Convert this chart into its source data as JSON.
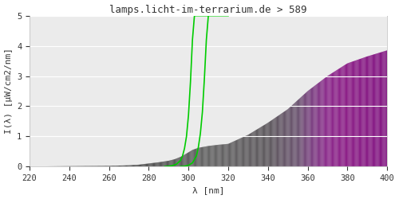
{
  "title": "lamps.licht-im-terrarium.de > 589",
  "xlabel": "λ [nm]",
  "ylabel": "I(λ) [µW/cm2/nm]",
  "xlim": [
    220,
    400
  ],
  "ylim": [
    0,
    5.0
  ],
  "xticks": [
    220,
    240,
    260,
    280,
    300,
    320,
    340,
    360,
    380,
    400
  ],
  "yticks": [
    0.0,
    1.0,
    2.0,
    3.0,
    4.0,
    5.0
  ],
  "background_color": "#ebebeb",
  "grid_color": "#ffffff",
  "solar_spectrum_x": [
    220,
    230,
    240,
    250,
    260,
    270,
    275,
    280,
    285,
    290,
    293,
    296,
    299,
    302,
    305,
    310,
    315,
    320,
    330,
    340,
    350,
    360,
    370,
    380,
    390,
    400
  ],
  "solar_spectrum_y": [
    0.0,
    0.005,
    0.01,
    0.015,
    0.02,
    0.04,
    0.06,
    0.1,
    0.14,
    0.19,
    0.24,
    0.32,
    0.43,
    0.55,
    0.62,
    0.68,
    0.72,
    0.75,
    1.05,
    1.45,
    1.9,
    2.5,
    3.0,
    3.42,
    3.65,
    3.85
  ],
  "spectrum_colors": {
    "220": "#111111",
    "250": "#222222",
    "280": "#333333",
    "300": "#555555",
    "320": "#4a4a4a",
    "340": "#3d3d3d",
    "355": "#555566",
    "365": "#7a5080",
    "375": "#880077",
    "385": "#7a0075",
    "400": "#6a0070"
  },
  "vitd_curve1_x": [
    288,
    290,
    292,
    294,
    296,
    297,
    298,
    299,
    300,
    301,
    302,
    303,
    304,
    305,
    310
  ],
  "vitd_curve1_y": [
    0.0,
    0.01,
    0.03,
    0.08,
    0.2,
    0.35,
    0.6,
    1.0,
    1.7,
    2.8,
    4.2,
    5.0,
    5.0,
    5.0,
    5.0
  ],
  "vitd_curve2_x": [
    296,
    298,
    300,
    302,
    304,
    305,
    306,
    307,
    308,
    309,
    310,
    311,
    312,
    315,
    320
  ],
  "vitd_curve2_y": [
    0.0,
    0.01,
    0.04,
    0.12,
    0.35,
    0.65,
    1.1,
    1.8,
    2.9,
    4.2,
    5.0,
    5.0,
    5.0,
    5.0,
    5.0
  ],
  "line_color": "#00cc00",
  "line_width": 1.2,
  "title_color": "#333333",
  "title_fontsize": 9,
  "axis_fontsize": 8,
  "tick_fontsize": 7.5,
  "font_family": "monospace"
}
